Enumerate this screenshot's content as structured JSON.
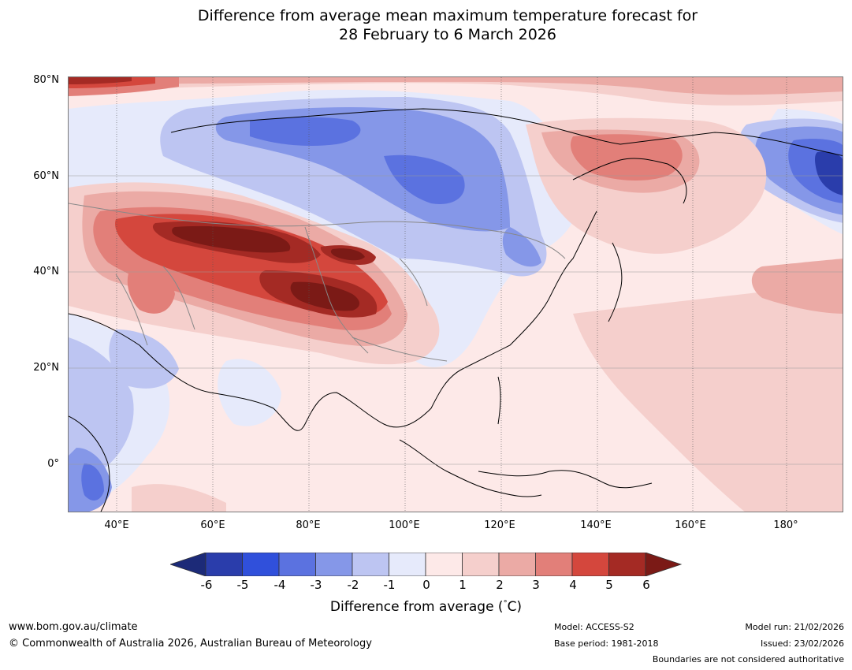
{
  "title": {
    "line1": "Difference from average mean maximum temperature forecast for",
    "line2": "28 February to 6 March 2026"
  },
  "map": {
    "region": "Asia",
    "lat_labels": [
      "80°N",
      "60°N",
      "40°N",
      "20°N",
      "0°"
    ],
    "lon_labels": [
      "40°E",
      "60°E",
      "80°E",
      "100°E",
      "120°E",
      "140°E",
      "160°E",
      "180°"
    ]
  },
  "colorbar": {
    "ticks": [
      "-6",
      "-5",
      "-4",
      "-3",
      "-2",
      "-1",
      "0",
      "1",
      "2",
      "3",
      "4",
      "5",
      "6"
    ],
    "colors": [
      "#1c2a78",
      "#2a3dab",
      "#3050db",
      "#5b72e0",
      "#8597e8",
      "#bdc5f2",
      "#e6eafb",
      "#fde9e8",
      "#f5cfcc",
      "#ebaaa5",
      "#e27f79",
      "#d4473d",
      "#a42a24",
      "#7b1a16"
    ],
    "label": "Difference from average (°C)",
    "label_prefix": "Difference from average (",
    "label_deg": "°",
    "label_suffix": "C)"
  },
  "footer": {
    "website": "www.bom.gov.au/climate",
    "copyright": "© Commonwealth of Australia 2026, Australian Bureau of Meteorology",
    "model": "Model: ACCESS-S2",
    "base_period": "Base period: 1981-2018",
    "model_run": "Model run: 21/02/2026",
    "issued": "Issued: 23/02/2026",
    "disclaimer": "Boundaries are not considered authoritative"
  }
}
